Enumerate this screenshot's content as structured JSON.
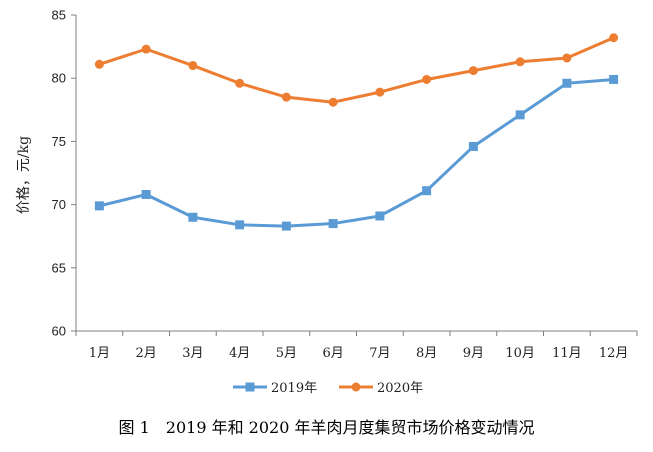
{
  "chart_data": {
    "type": "line",
    "categories": [
      "1月",
      "2月",
      "3月",
      "4月",
      "5月",
      "6月",
      "7月",
      "8月",
      "9月",
      "10月",
      "11月",
      "12月"
    ],
    "series": [
      {
        "name": "2019年",
        "color": "#5b9bd5",
        "marker": "square",
        "values": [
          69.9,
          70.8,
          69.0,
          68.4,
          68.3,
          68.5,
          69.1,
          71.1,
          74.6,
          77.1,
          79.6,
          79.9
        ]
      },
      {
        "name": "2020年",
        "color": "#ed7d31",
        "marker": "circle",
        "values": [
          81.1,
          82.3,
          81.0,
          79.6,
          78.5,
          78.1,
          78.9,
          79.9,
          80.6,
          81.3,
          81.6,
          83.2
        ]
      }
    ],
    "ylabel": "价格，元/kg",
    "ylim": [
      60,
      85
    ],
    "yticks": [
      60,
      65,
      70,
      75,
      80,
      85
    ],
    "grid": false,
    "legend_position": "bottom"
  },
  "caption": "图 1　2019 年和 2020 年羊肉月度集贸市场价格变动情况"
}
